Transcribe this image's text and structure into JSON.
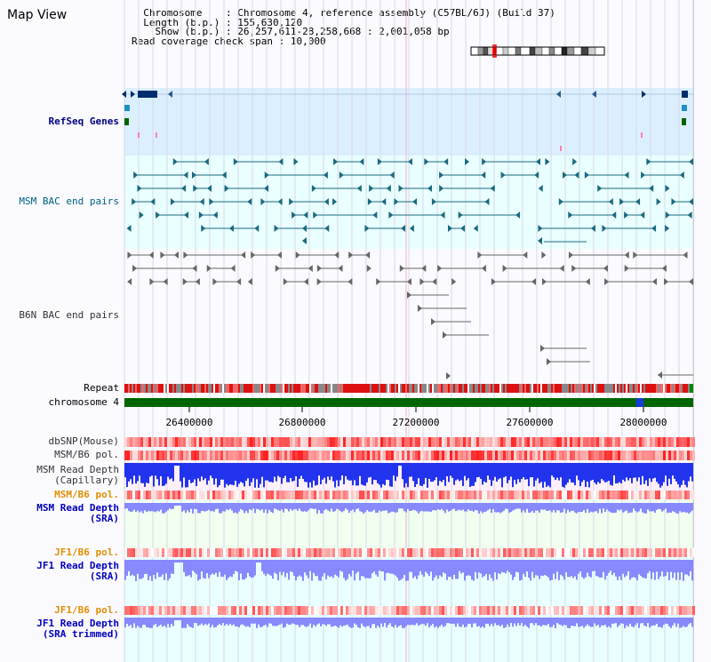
{
  "window": {
    "title": "Map View"
  },
  "info": {
    "chromosome_label": "Chromosome",
    "chromosome_value": "Chromosome 4, reference assembly (C57BL/6J) (Build 37)",
    "length_label": "Length (b.p.)",
    "length_value": "155,630,120",
    "show_label": "Show (b.p.)",
    "show_value": "26,257,611-28,258,668 : 2,001,058 bp",
    "coverage_label": "Read coverage check span",
    "coverage_value": "10,000"
  },
  "tracks": {
    "refseq": "RefSeq Genes",
    "msm_bac": "MSM BAC end pairs",
    "b6n_bac": "B6N BAC end pairs",
    "repeat": "Repeat",
    "chromosome": "chromosome 4",
    "dbsnp": "dbSNP(Mouse)",
    "msm_b6_pol": "MSM/B6 pol.",
    "msm_read_depth_cap_1": "MSM Read Depth",
    "msm_read_depth_cap_2": "(Capillary)",
    "msm_b6_pol_sra": "MSM/B6 pol.",
    "msm_read_depth_sra_1": "MSM Read Depth",
    "msm_read_depth_sra_2": "(SRA)",
    "jf1_b6_pol": "JF1/B6 pol.",
    "jf1_read_depth_1": "JF1 Read Depth",
    "jf1_read_depth_2": "(SRA)",
    "jf1_b6_pol_trim": "JF1/B6 pol.",
    "jf1_read_depth_trim_1": "JF1 Read Depth",
    "jf1_read_depth_trim_2": "(SRA trimmed)"
  },
  "axis": {
    "ticks": [
      "26400000",
      "26800000",
      "27200000",
      "27600000",
      "28000000"
    ]
  },
  "colors": {
    "refseq_bg": "#dcefff",
    "msm_bg": "#eaffff",
    "msm_feature": "#1a6a80",
    "b6n_feature": "#666666",
    "chrom_green": "#006600",
    "snp_red": "#ff4444",
    "depth_blue": "#2233ee",
    "depth_light": "#8888ff",
    "region_pink": "#fff0fa",
    "region_green": "#f0fff0",
    "region_cyan": "#eaffff"
  }
}
